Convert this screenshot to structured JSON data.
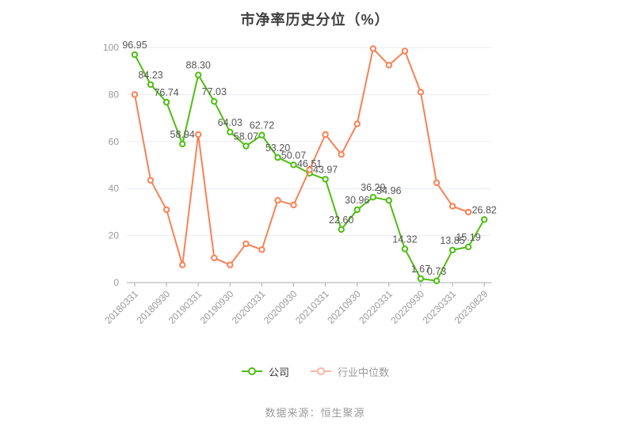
{
  "title": "市净率历史分位（%）",
  "source": "数据来源：恒生聚源",
  "colors": {
    "company_line": "#4fbd12",
    "industry_line": "#fa8155",
    "industry_legend_icon": "#f7b7a3",
    "grid_line": "#e8ebf3",
    "axis_line": "#a8abb2",
    "tick_label": "#999999",
    "value_label": "#555555",
    "title_text": "#3f3f3f"
  },
  "chart_data": {
    "type": "line",
    "title": "市净率历史分位（%）",
    "xlabel": "",
    "ylabel": "",
    "ylim": [
      0,
      100
    ],
    "y_ticks": [
      0,
      20,
      40,
      60,
      80,
      100
    ],
    "grid": true,
    "legend_position": "bottom",
    "n_points": 23,
    "x_tick_labels": [
      "20180331",
      "20180930",
      "20190331",
      "20190930",
      "20200331",
      "20200930",
      "20210331",
      "20210930",
      "20220331",
      "20220930",
      "20230331",
      "20230829"
    ],
    "x_tick_point_indices": [
      0,
      2,
      4,
      6,
      8,
      10,
      12,
      14,
      16,
      18,
      20,
      22
    ],
    "series": [
      {
        "name": "公司",
        "color": "#4fbd12",
        "show_point_labels": true,
        "values": [
          "96.95",
          "84.23",
          "76.74",
          "58.94",
          "88.30",
          "77.03",
          "64.03",
          "58.07",
          "62.72",
          "53.20",
          "50.07",
          "46.51",
          "43.97",
          "22.60",
          "30.96",
          "36.29",
          "34.96",
          "14.32",
          "1.67",
          "0.73",
          "13.85",
          "15.19",
          "26.82"
        ]
      },
      {
        "name": "行业中位数",
        "color": "#fa8155",
        "show_point_labels": false,
        "values": [
          80,
          43.5,
          31,
          7.5,
          63,
          10.5,
          7.5,
          16.5,
          14,
          35,
          33,
          48,
          63,
          54.5,
          67.5,
          99.5,
          92.5,
          98.5,
          81,
          42.5,
          32.5,
          30
        ]
      }
    ],
    "legend": [
      {
        "label": "公司",
        "icon_color": "#4fbd12",
        "text_color": "#333333"
      },
      {
        "label": "行业中位数",
        "icon_color": "#f7b7a3",
        "text_color": "#999999"
      }
    ]
  }
}
